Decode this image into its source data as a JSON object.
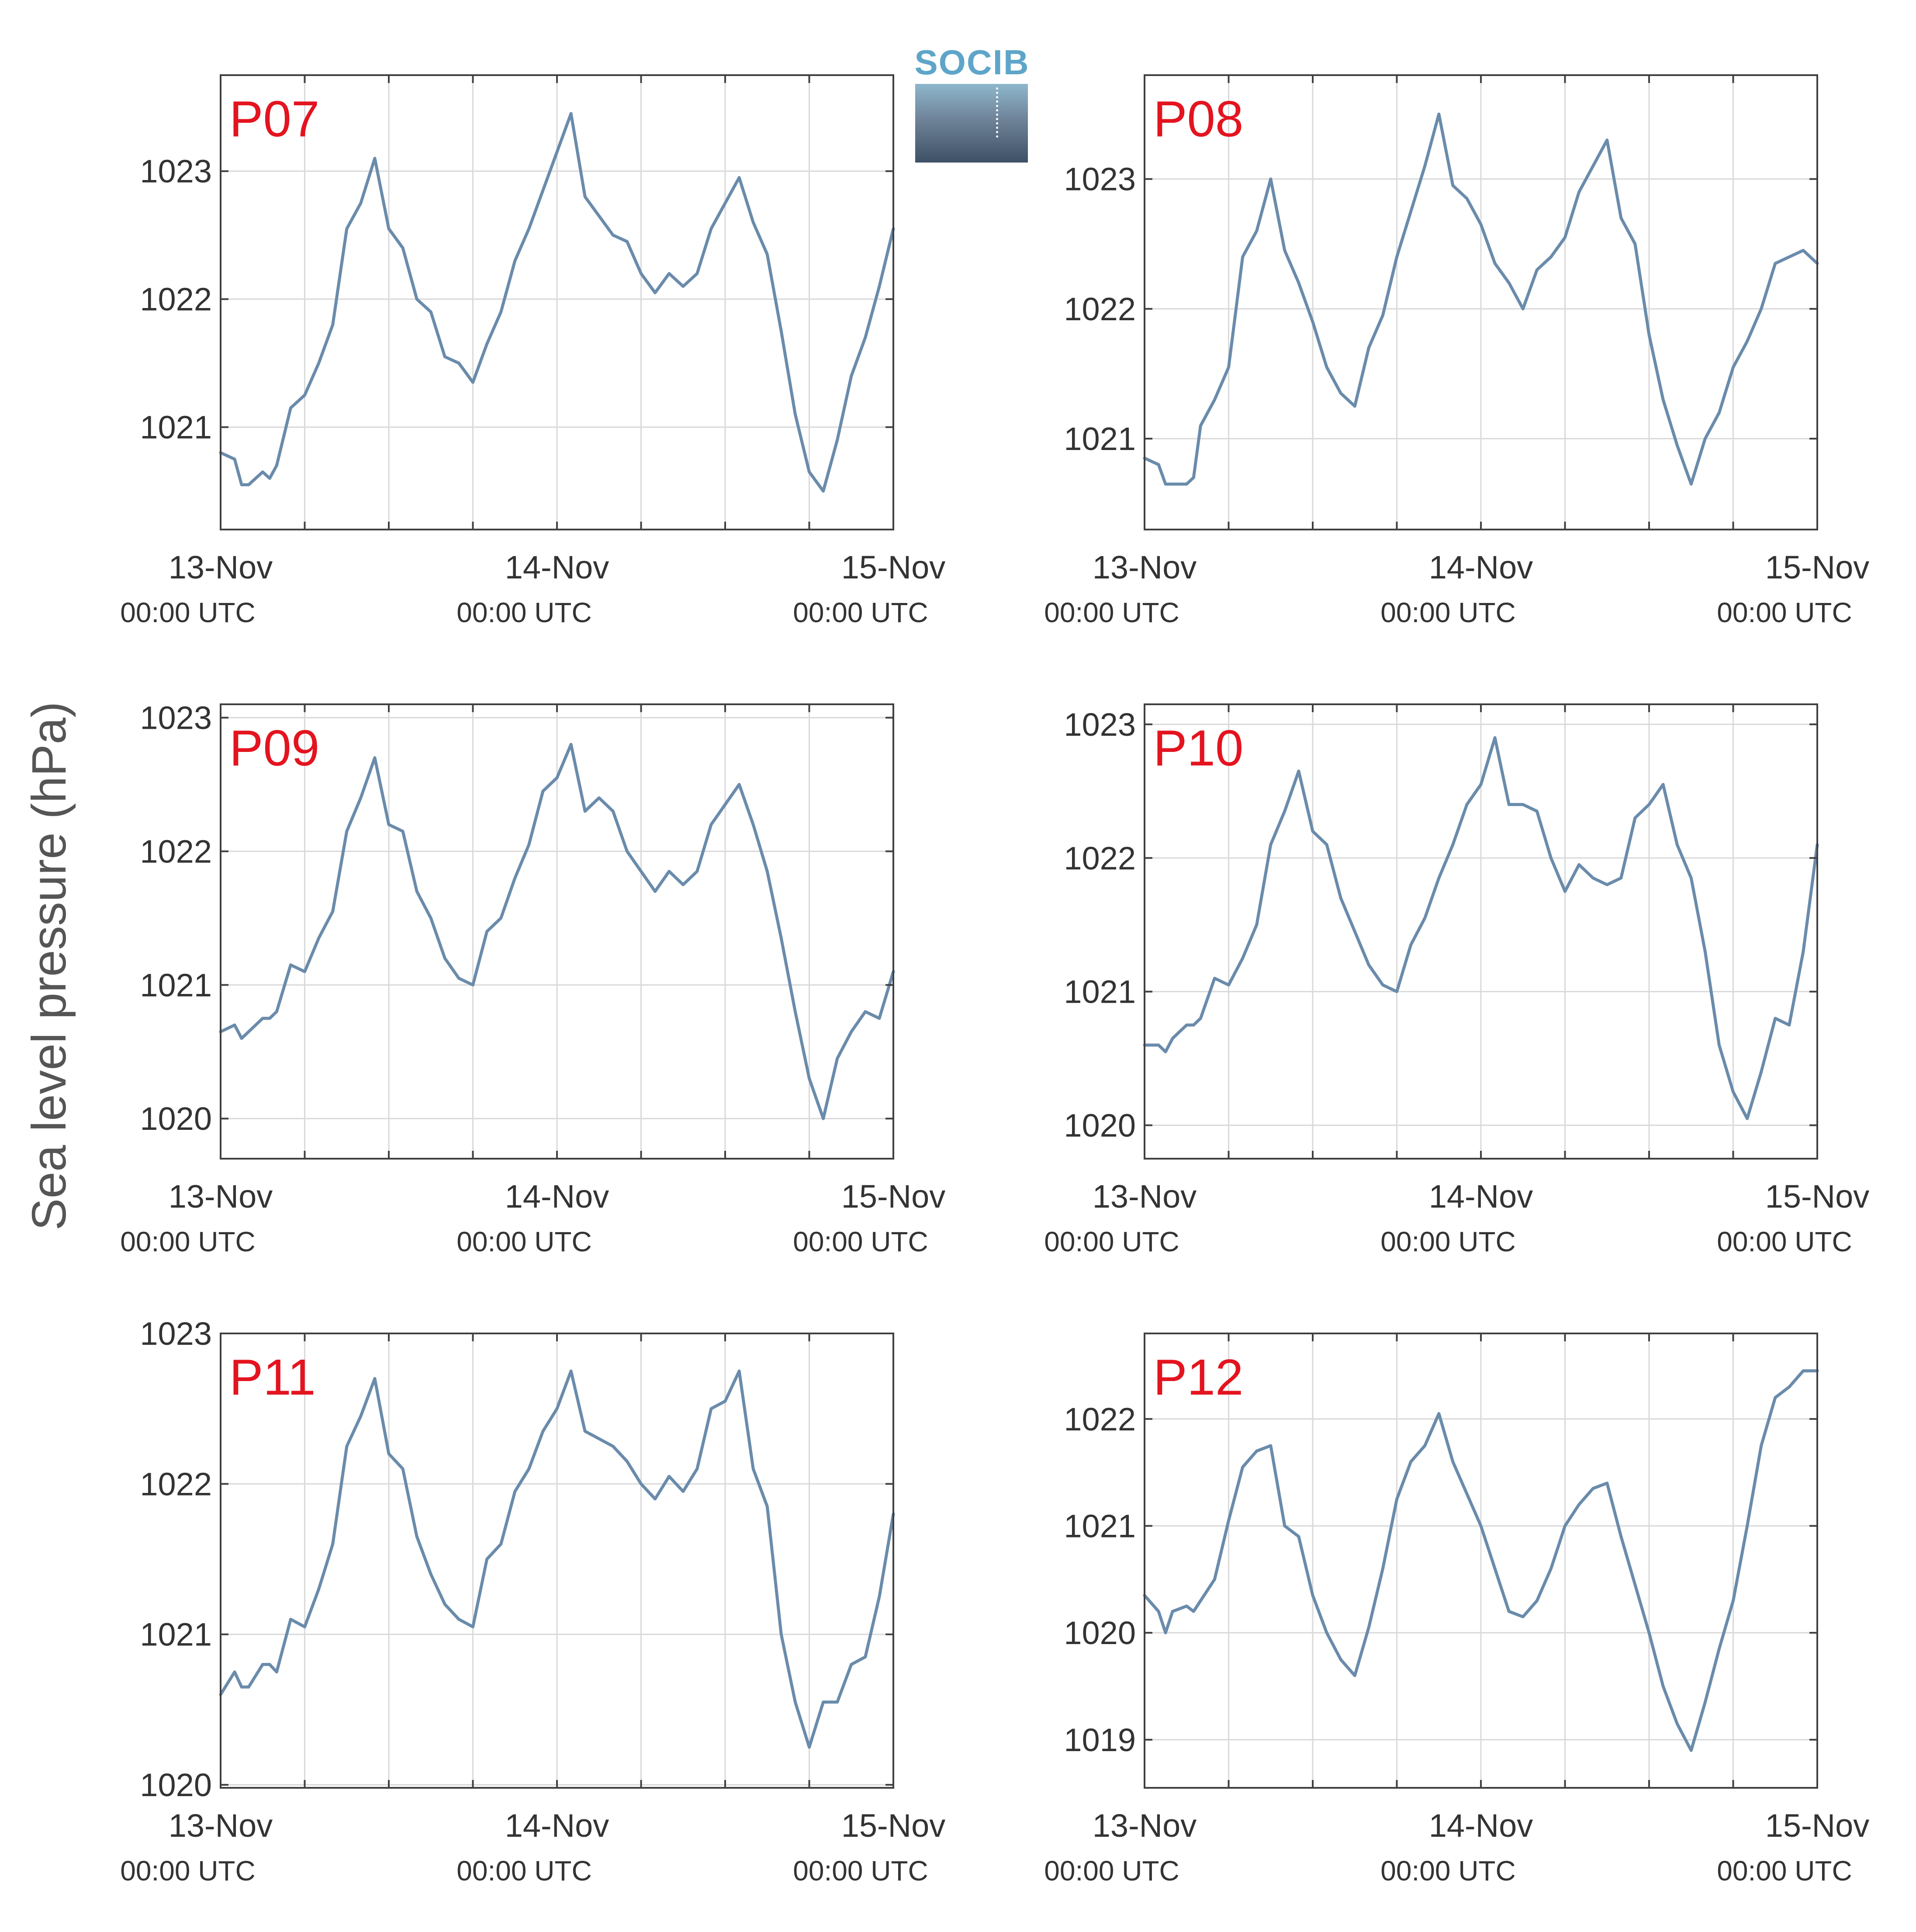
{
  "figure": {
    "ylabel": "Sea level pressure (hPa)",
    "logo_text": "SOCIB",
    "colors": {
      "line": "#6a8bab",
      "panel_label": "#e3141f",
      "axis": "#404040",
      "grid": "#d9d9d9",
      "text": "#333333"
    }
  },
  "chart_data": [
    {
      "type": "line",
      "panel": "P07",
      "x_ticks": [
        {
          "date": "13-Nov",
          "time": "00:00 UTC"
        },
        {
          "date": "14-Nov",
          "time": "00:00 UTC"
        },
        {
          "date": "15-Nov",
          "time": "00:00 UTC"
        }
      ],
      "xlim_hours": [
        0,
        48
      ],
      "y_ticks": [
        1021,
        1022,
        1023
      ],
      "ylim": [
        1020.2,
        1023.75
      ],
      "grid": true,
      "x_hours": [
        0,
        1,
        1.5,
        2,
        3,
        3.5,
        4,
        5,
        6,
        7,
        8,
        9,
        10,
        11,
        12,
        13,
        14,
        15,
        16,
        17,
        18,
        19,
        20,
        21,
        22,
        23,
        24,
        25,
        26,
        27,
        28,
        29,
        30,
        31,
        32,
        33,
        34,
        35,
        36,
        37,
        38,
        39,
        40,
        41,
        42,
        43,
        44,
        45,
        46,
        47,
        48
      ],
      "values": [
        1020.8,
        1020.75,
        1020.55,
        1020.55,
        1020.65,
        1020.6,
        1020.7,
        1021.15,
        1021.25,
        1021.5,
        1021.8,
        1022.55,
        1022.75,
        1023.1,
        1022.55,
        1022.4,
        1022.0,
        1021.9,
        1021.55,
        1021.5,
        1021.35,
        1021.65,
        1021.9,
        1022.3,
        1022.55,
        1022.85,
        1023.15,
        1023.45,
        1022.8,
        1022.65,
        1022.5,
        1022.45,
        1022.2,
        1022.05,
        1022.2,
        1022.1,
        1022.2,
        1022.55,
        1022.75,
        1022.95,
        1022.6,
        1022.35,
        1021.75,
        1021.1,
        1020.65,
        1020.5,
        1020.9,
        1021.4,
        1021.7,
        1022.1,
        1022.55
      ]
    },
    {
      "type": "line",
      "panel": "P08",
      "x_ticks": [
        {
          "date": "13-Nov",
          "time": "00:00 UTC"
        },
        {
          "date": "14-Nov",
          "time": "00:00 UTC"
        },
        {
          "date": "15-Nov",
          "time": "00:00 UTC"
        }
      ],
      "xlim_hours": [
        0,
        48
      ],
      "y_ticks": [
        1021,
        1022,
        1023
      ],
      "ylim": [
        1020.3,
        1023.8
      ],
      "grid": true,
      "x_hours": [
        0,
        1,
        1.5,
        2,
        3,
        3.5,
        4,
        5,
        6,
        7,
        8,
        9,
        10,
        11,
        12,
        13,
        14,
        15,
        16,
        17,
        18,
        19,
        20,
        21,
        22,
        23,
        24,
        25,
        26,
        27,
        28,
        29,
        30,
        31,
        32,
        33,
        34,
        35,
        36,
        37,
        38,
        39,
        40,
        41,
        42,
        43,
        44,
        45,
        46,
        47,
        48
      ],
      "values": [
        1020.85,
        1020.8,
        1020.65,
        1020.65,
        1020.65,
        1020.7,
        1021.1,
        1021.3,
        1021.55,
        1022.4,
        1022.6,
        1023.0,
        1022.45,
        1022.2,
        1021.9,
        1021.55,
        1021.35,
        1021.25,
        1021.7,
        1021.95,
        1022.4,
        1022.75,
        1023.1,
        1023.5,
        1022.95,
        1022.85,
        1022.65,
        1022.35,
        1022.2,
        1022.0,
        1022.3,
        1022.4,
        1022.55,
        1022.9,
        1023.1,
        1023.3,
        1022.7,
        1022.5,
        1021.8,
        1021.3,
        1020.95,
        1020.65,
        1021.0,
        1021.2,
        1021.55,
        1021.75,
        1022.0,
        1022.35,
        1022.4,
        1022.45,
        1022.35
      ]
    },
    {
      "type": "line",
      "panel": "P09",
      "x_ticks": [
        {
          "date": "13-Nov",
          "time": "00:00 UTC"
        },
        {
          "date": "14-Nov",
          "time": "00:00 UTC"
        },
        {
          "date": "15-Nov",
          "time": "00:00 UTC"
        }
      ],
      "xlim_hours": [
        0,
        48
      ],
      "y_ticks": [
        1020,
        1021,
        1022,
        1023
      ],
      "ylim": [
        1019.7,
        1023.1
      ],
      "grid": true,
      "x_hours": [
        0,
        1,
        1.5,
        2,
        3,
        3.5,
        4,
        5,
        6,
        7,
        8,
        9,
        10,
        11,
        12,
        13,
        14,
        15,
        16,
        17,
        18,
        19,
        20,
        21,
        22,
        23,
        24,
        25,
        26,
        27,
        28,
        29,
        30,
        31,
        32,
        33,
        34,
        35,
        36,
        37,
        38,
        39,
        40,
        41,
        42,
        43,
        44,
        45,
        46,
        47,
        48
      ],
      "values": [
        1020.65,
        1020.7,
        1020.6,
        1020.65,
        1020.75,
        1020.75,
        1020.8,
        1021.15,
        1021.1,
        1021.35,
        1021.55,
        1022.15,
        1022.4,
        1022.7,
        1022.2,
        1022.15,
        1021.7,
        1021.5,
        1021.2,
        1021.05,
        1021.0,
        1021.4,
        1021.5,
        1021.8,
        1022.05,
        1022.45,
        1022.55,
        1022.8,
        1022.3,
        1022.4,
        1022.3,
        1022.0,
        1021.85,
        1021.7,
        1021.85,
        1021.75,
        1021.85,
        1022.2,
        1022.35,
        1022.5,
        1022.2,
        1021.85,
        1021.35,
        1020.8,
        1020.3,
        1020.0,
        1020.45,
        1020.65,
        1020.8,
        1020.75,
        1021.1
      ]
    },
    {
      "type": "line",
      "panel": "P10",
      "x_ticks": [
        {
          "date": "13-Nov",
          "time": "00:00 UTC"
        },
        {
          "date": "14-Nov",
          "time": "00:00 UTC"
        },
        {
          "date": "15-Nov",
          "time": "00:00 UTC"
        }
      ],
      "xlim_hours": [
        0,
        48
      ],
      "y_ticks": [
        1020,
        1021,
        1022,
        1023
      ],
      "ylim": [
        1019.75,
        1023.15
      ],
      "grid": true,
      "x_hours": [
        0,
        1,
        1.5,
        2,
        3,
        3.5,
        4,
        5,
        6,
        7,
        8,
        9,
        10,
        11,
        12,
        13,
        14,
        15,
        16,
        17,
        18,
        19,
        20,
        21,
        22,
        23,
        24,
        25,
        26,
        27,
        28,
        29,
        30,
        31,
        32,
        33,
        34,
        35,
        36,
        37,
        38,
        39,
        40,
        41,
        42,
        43,
        44,
        45,
        46,
        47,
        48
      ],
      "values": [
        1020.6,
        1020.6,
        1020.55,
        1020.65,
        1020.75,
        1020.75,
        1020.8,
        1021.1,
        1021.05,
        1021.25,
        1021.5,
        1022.1,
        1022.35,
        1022.65,
        1022.2,
        1022.1,
        1021.7,
        1021.45,
        1021.2,
        1021.05,
        1021.0,
        1021.35,
        1021.55,
        1021.85,
        1022.1,
        1022.4,
        1022.55,
        1022.9,
        1022.4,
        1022.4,
        1022.35,
        1022.0,
        1021.75,
        1021.95,
        1021.85,
        1021.8,
        1021.85,
        1022.3,
        1022.4,
        1022.55,
        1022.1,
        1021.85,
        1021.3,
        1020.6,
        1020.25,
        1020.05,
        1020.4,
        1020.8,
        1020.75,
        1021.3,
        1022.1
      ]
    },
    {
      "type": "line",
      "panel": "P11",
      "x_ticks": [
        {
          "date": "13-Nov",
          "time": "00:00 UTC"
        },
        {
          "date": "14-Nov",
          "time": "00:00 UTC"
        },
        {
          "date": "15-Nov",
          "time": "00:00 UTC"
        }
      ],
      "xlim_hours": [
        0,
        48
      ],
      "y_ticks": [
        1020,
        1021,
        1022,
        1023
      ],
      "ylim": [
        1019.98,
        1023.0
      ],
      "grid": true,
      "x_hours": [
        0,
        1,
        1.5,
        2,
        3,
        3.5,
        4,
        5,
        6,
        7,
        8,
        9,
        10,
        11,
        12,
        13,
        14,
        15,
        16,
        17,
        18,
        19,
        20,
        21,
        22,
        23,
        24,
        25,
        26,
        27,
        28,
        29,
        30,
        31,
        32,
        33,
        34,
        35,
        36,
        37,
        38,
        39,
        40,
        41,
        42,
        43,
        44,
        45,
        46,
        47,
        48
      ],
      "values": [
        1020.6,
        1020.75,
        1020.65,
        1020.65,
        1020.8,
        1020.8,
        1020.75,
        1021.1,
        1021.05,
        1021.3,
        1021.6,
        1022.25,
        1022.45,
        1022.7,
        1022.2,
        1022.1,
        1021.65,
        1021.4,
        1021.2,
        1021.1,
        1021.05,
        1021.5,
        1021.6,
        1021.95,
        1022.1,
        1022.35,
        1022.5,
        1022.75,
        1022.35,
        1022.3,
        1022.25,
        1022.15,
        1022.0,
        1021.9,
        1022.05,
        1021.95,
        1022.1,
        1022.5,
        1022.55,
        1022.75,
        1022.1,
        1021.85,
        1021.0,
        1020.55,
        1020.25,
        1020.55,
        1020.55,
        1020.8,
        1020.85,
        1021.25,
        1021.8
      ]
    },
    {
      "type": "line",
      "panel": "P12",
      "x_ticks": [
        {
          "date": "13-Nov",
          "time": "00:00 UTC"
        },
        {
          "date": "14-Nov",
          "time": "00:00 UTC"
        },
        {
          "date": "15-Nov",
          "time": "00:00 UTC"
        }
      ],
      "xlim_hours": [
        0,
        48
      ],
      "y_ticks": [
        1019,
        1020,
        1021,
        1022
      ],
      "ylim": [
        1018.55,
        1022.8
      ],
      "grid": true,
      "x_hours": [
        0,
        1,
        1.5,
        2,
        3,
        3.5,
        4,
        5,
        6,
        7,
        8,
        9,
        10,
        11,
        12,
        13,
        14,
        15,
        16,
        17,
        18,
        19,
        20,
        21,
        22,
        23,
        24,
        25,
        26,
        27,
        28,
        29,
        30,
        31,
        32,
        33,
        34,
        35,
        36,
        37,
        38,
        39,
        40,
        41,
        42,
        43,
        44,
        45,
        46,
        47,
        48
      ],
      "values": [
        1020.35,
        1020.2,
        1020.0,
        1020.2,
        1020.25,
        1020.2,
        1020.3,
        1020.5,
        1021.05,
        1021.55,
        1021.7,
        1021.75,
        1021.0,
        1020.9,
        1020.35,
        1020.0,
        1019.75,
        1019.6,
        1020.05,
        1020.6,
        1021.25,
        1021.6,
        1021.75,
        1022.05,
        1021.6,
        1021.3,
        1021.0,
        1020.6,
        1020.2,
        1020.15,
        1020.3,
        1020.6,
        1021.0,
        1021.2,
        1021.35,
        1021.4,
        1020.9,
        1020.45,
        1020.0,
        1019.5,
        1019.15,
        1018.9,
        1019.35,
        1019.85,
        1020.3,
        1021.0,
        1021.75,
        1022.2,
        1022.3,
        1022.45,
        1022.45
      ]
    }
  ]
}
